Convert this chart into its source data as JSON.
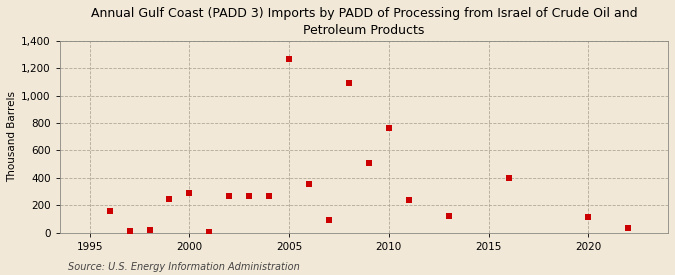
{
  "title": "Annual Gulf Coast (PADD 3) Imports by PADD of Processing from Israel of Crude Oil and\nPetroleum Products",
  "ylabel": "Thousand Barrels",
  "source": "Source: U.S. Energy Information Administration",
  "background_color": "#f2e8d8",
  "plot_background_color": "#f2e8d8",
  "point_color": "#cc0000",
  "years": [
    1996,
    1997,
    1998,
    1999,
    2000,
    2001,
    2002,
    2003,
    2004,
    2005,
    2006,
    2007,
    2008,
    2009,
    2010,
    2011,
    2013,
    2016,
    2020,
    2022
  ],
  "values": [
    160,
    10,
    15,
    245,
    290,
    5,
    265,
    265,
    265,
    1270,
    355,
    90,
    1090,
    505,
    765,
    235,
    120,
    400,
    110,
    30
  ],
  "xlim": [
    1993.5,
    2024
  ],
  "ylim": [
    0,
    1400
  ],
  "yticks": [
    0,
    200,
    400,
    600,
    800,
    1000,
    1200,
    1400
  ],
  "xticks": [
    1995,
    2000,
    2005,
    2010,
    2015,
    2020
  ],
  "title_fontsize": 9,
  "axis_fontsize": 7.5,
  "source_fontsize": 7,
  "marker_size": 4
}
